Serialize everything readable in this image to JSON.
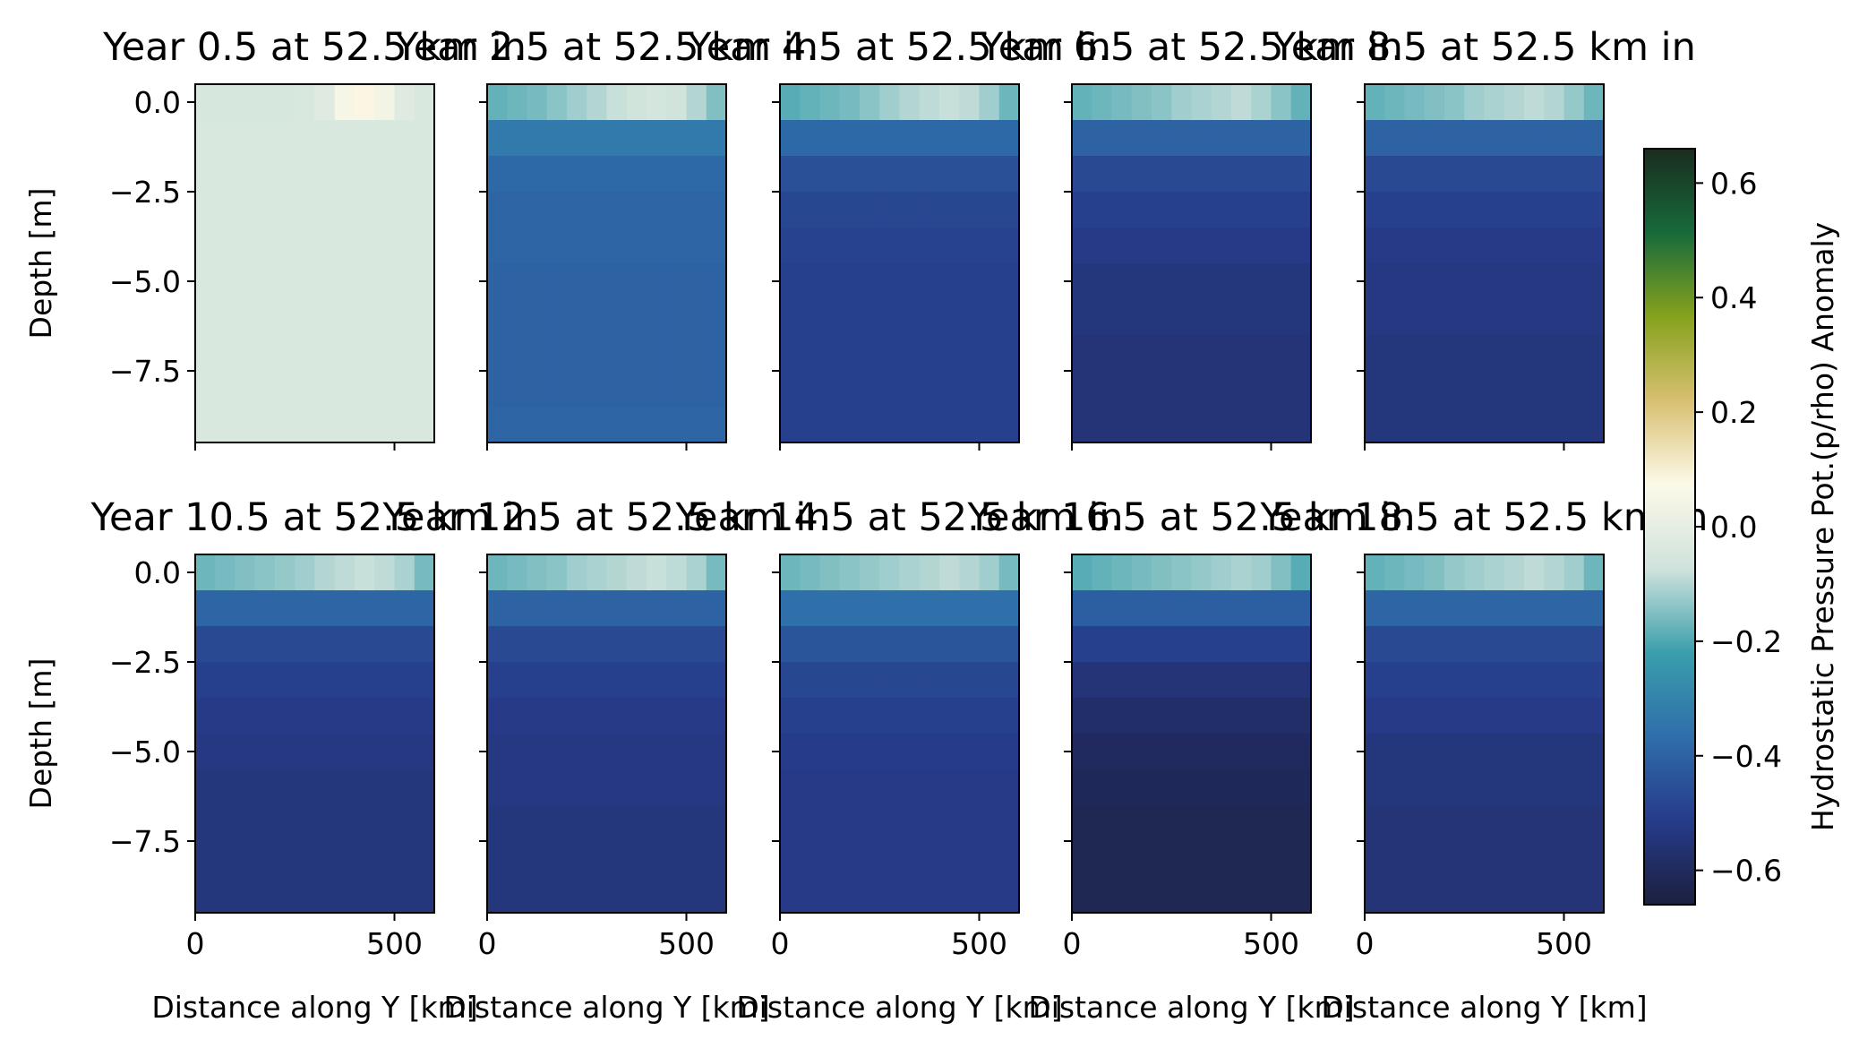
{
  "chart_data": {
    "type": "heatmap",
    "colorscale": [
      "#1c1f3f",
      "#263b8a",
      "#2f6eaa",
      "#3a9eac",
      "#cfe3dc",
      "#fcf9e8",
      "#d8c072",
      "#86a21c",
      "#176a3b",
      "#1a2c1f"
    ],
    "colorbar": {
      "label": "Hydrostatic Pressure Pot.(p/rho) Anomaly",
      "range": [
        -0.66,
        0.66
      ],
      "ticks": [
        {
          "value": 0.6,
          "label": "0.6"
        },
        {
          "value": 0.4,
          "label": "0.4"
        },
        {
          "value": 0.2,
          "label": "0.2"
        },
        {
          "value": 0.0,
          "label": "0.0"
        },
        {
          "value": -0.2,
          "label": "−0.2"
        },
        {
          "value": -0.4,
          "label": "−0.4"
        },
        {
          "value": -0.6,
          "label": "−0.6"
        }
      ]
    },
    "xlabel": "Distance along Y [km]",
    "ylabel": "Depth [m]",
    "xlim": [
      0,
      600
    ],
    "ylim": [
      -9.5,
      0.5
    ],
    "x_ticks": [
      {
        "value": 0,
        "label": "0"
      },
      {
        "value": 500,
        "label": "500"
      }
    ],
    "y_ticks": [
      {
        "value": 0.0,
        "label": "0.0"
      },
      {
        "value": -2.5,
        "label": "−2.5"
      },
      {
        "value": -5.0,
        "label": "−5.0"
      },
      {
        "value": -7.5,
        "label": "−7.5"
      }
    ],
    "x_centers": [
      25,
      75,
      125,
      175,
      225,
      275,
      325,
      375,
      425,
      475,
      525,
      575
    ],
    "depths": [
      0,
      -1,
      -2,
      -3,
      -4,
      -5,
      -6,
      -7,
      -8,
      -9
    ],
    "panels": [
      {
        "title": "Year 0.5 at 52.5 km in",
        "top": [
          -0.05,
          -0.05,
          -0.05,
          -0.05,
          -0.05,
          -0.04,
          -0.02,
          0.05,
          0.08,
          0.04,
          -0.02,
          -0.04
        ],
        "rows": [
          -0.04,
          -0.04,
          -0.04,
          -0.04,
          -0.04,
          -0.04,
          -0.04,
          -0.04,
          -0.04,
          -0.04
        ]
      },
      {
        "title": "Year 2.5 at 52.5 km in",
        "top": [
          -0.18,
          -0.17,
          -0.16,
          -0.14,
          -0.12,
          -0.1,
          -0.08,
          -0.07,
          -0.06,
          -0.07,
          -0.1,
          -0.15
        ],
        "rows": [
          -0.15,
          -0.33,
          -0.38,
          -0.39,
          -0.39,
          -0.4,
          -0.4,
          -0.4,
          -0.4,
          -0.39
        ]
      },
      {
        "title": "Year 4.5 at 52.5 km in",
        "top": [
          -0.19,
          -0.18,
          -0.17,
          -0.16,
          -0.14,
          -0.12,
          -0.1,
          -0.09,
          -0.08,
          -0.09,
          -0.12,
          -0.17
        ],
        "rows": [
          -0.16,
          -0.38,
          -0.45,
          -0.48,
          -0.49,
          -0.5,
          -0.5,
          -0.5,
          -0.5,
          -0.5
        ]
      },
      {
        "title": "Year 6.5 at 52.5 km in",
        "top": [
          -0.18,
          -0.17,
          -0.16,
          -0.15,
          -0.14,
          -0.12,
          -0.11,
          -0.1,
          -0.09,
          -0.11,
          -0.14,
          -0.18
        ],
        "rows": [
          -0.16,
          -0.4,
          -0.47,
          -0.5,
          -0.52,
          -0.54,
          -0.54,
          -0.55,
          -0.55,
          -0.55
        ]
      },
      {
        "title": "Year 8.5 at 52.5 km in",
        "top": [
          -0.18,
          -0.17,
          -0.16,
          -0.15,
          -0.14,
          -0.12,
          -0.11,
          -0.1,
          -0.09,
          -0.1,
          -0.13,
          -0.17
        ],
        "rows": [
          -0.16,
          -0.4,
          -0.47,
          -0.5,
          -0.52,
          -0.53,
          -0.53,
          -0.54,
          -0.54,
          -0.54
        ]
      },
      {
        "title": "Year 10.5 at 52.5 km in",
        "top": [
          -0.17,
          -0.16,
          -0.15,
          -0.14,
          -0.13,
          -0.12,
          -0.1,
          -0.09,
          -0.08,
          -0.09,
          -0.11,
          -0.16
        ],
        "rows": [
          -0.15,
          -0.39,
          -0.47,
          -0.5,
          -0.52,
          -0.53,
          -0.54,
          -0.54,
          -0.54,
          -0.54
        ]
      },
      {
        "title": "Year 12.5 at 52.5 km in",
        "top": [
          -0.17,
          -0.16,
          -0.15,
          -0.14,
          -0.12,
          -0.11,
          -0.1,
          -0.09,
          -0.08,
          -0.09,
          -0.11,
          -0.16
        ],
        "rows": [
          -0.15,
          -0.4,
          -0.47,
          -0.5,
          -0.52,
          -0.53,
          -0.53,
          -0.54,
          -0.54,
          -0.54
        ]
      },
      {
        "title": "Year 14.5 at 52.5 km in",
        "top": [
          -0.17,
          -0.16,
          -0.15,
          -0.14,
          -0.13,
          -0.12,
          -0.11,
          -0.1,
          -0.09,
          -0.1,
          -0.12,
          -0.16
        ],
        "rows": [
          -0.15,
          -0.36,
          -0.44,
          -0.48,
          -0.5,
          -0.51,
          -0.52,
          -0.52,
          -0.52,
          -0.52
        ]
      },
      {
        "title": "Year 16.5 at 52.5 km in",
        "top": [
          -0.19,
          -0.18,
          -0.17,
          -0.16,
          -0.15,
          -0.14,
          -0.13,
          -0.12,
          -0.11,
          -0.12,
          -0.15,
          -0.19
        ],
        "rows": [
          -0.17,
          -0.41,
          -0.5,
          -0.55,
          -0.58,
          -0.6,
          -0.61,
          -0.62,
          -0.62,
          -0.62
        ]
      },
      {
        "title": "Year 18.5 at 52.5 km in",
        "top": [
          -0.18,
          -0.17,
          -0.16,
          -0.15,
          -0.13,
          -0.12,
          -0.11,
          -0.1,
          -0.09,
          -0.1,
          -0.12,
          -0.17
        ],
        "rows": [
          -0.16,
          -0.39,
          -0.47,
          -0.5,
          -0.52,
          -0.54,
          -0.54,
          -0.55,
          -0.55,
          -0.55
        ]
      }
    ]
  }
}
